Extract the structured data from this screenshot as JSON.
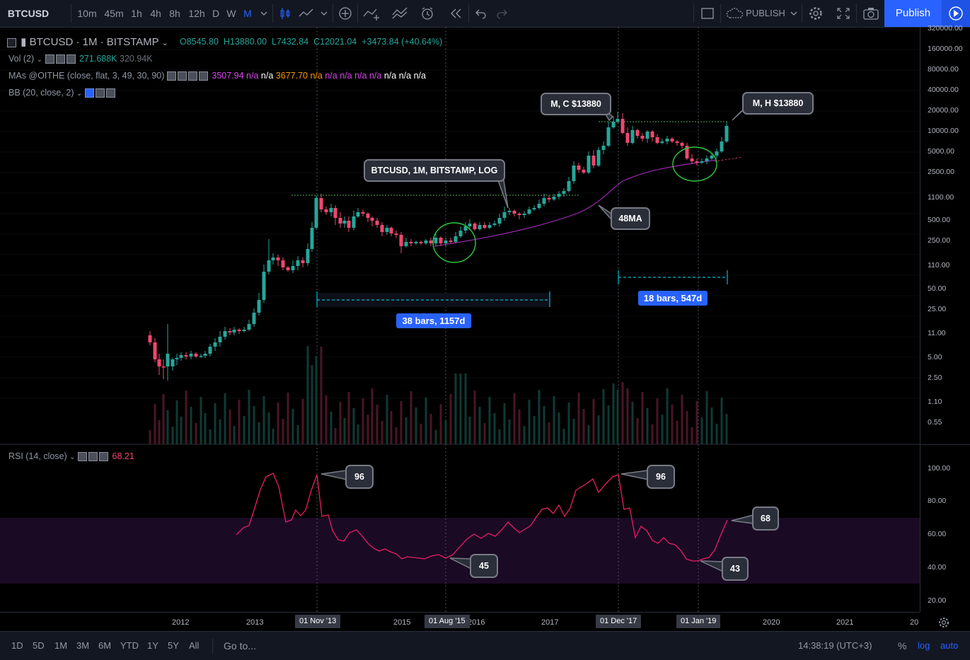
{
  "toolbar": {
    "symbol": "BTCUSD",
    "intervals": [
      "10m",
      "45m",
      "1h",
      "4h",
      "8h",
      "12h",
      "D",
      "W",
      "M"
    ],
    "active_interval": "M",
    "publish_dropdown": "PUBLISH",
    "publish_button": "Publish"
  },
  "legend": {
    "title": "BTCUSD · 1M · BITSTAMP",
    "open": "O8545.80",
    "high": "H13880.00",
    "low": "L7432.84",
    "close": "C12021.04",
    "change": "+3473.84 (+40.64%)",
    "vol_label": "Vol (2)",
    "vol_values": [
      "271.688K",
      "320.94K"
    ],
    "mas_label": "MAs @OITHE (close, flat, 3, 49, 30, 90)",
    "mas_values": [
      "3507.94",
      "n/a",
      "n/a",
      "3677.70",
      "n/a",
      "n/a",
      "n/a",
      "n/a",
      "n/a",
      "n/a",
      "n/a",
      "n/a"
    ],
    "bb_label": "BB (20, close, 2)",
    "rsi_label": "RSI (14, close)",
    "rsi_value": "68.21"
  },
  "price_axis": [
    "320000.00",
    "160000.00",
    "80000.00",
    "40000.00",
    "20000.00",
    "10000.00",
    "5000.00",
    "2500.00",
    "1100.00",
    "500.00",
    "250.00",
    "110.00",
    "50.00",
    "25.00",
    "11.00",
    "5.00",
    "2.50",
    "1.10",
    "0.55"
  ],
  "rsi_axis": [
    "100.00",
    "80.00",
    "60.00",
    "40.00",
    "20.00"
  ],
  "time_axis": [
    "2012",
    "2013",
    "2015",
    "2016",
    "2017",
    "2020",
    "2021",
    "20"
  ],
  "time_highlights": [
    "01 Nov '13",
    "01 Aug '15",
    "01 Dec '17",
    "01 Jan '19"
  ],
  "annotations": {
    "top_close": "M, C $13880",
    "top_high": "M, H $13880",
    "symbol_note": "BTCUSD, 1M, BITSTAMP, LOG",
    "ma_note": "48MA",
    "range1": "38 bars, 1157d",
    "range2": "18 bars, 547d",
    "rsi_96a": "96",
    "rsi_96b": "96",
    "rsi_45": "45",
    "rsi_43": "43",
    "rsi_68": "68"
  },
  "bottom_bar": {
    "ranges": [
      "1D",
      "5D",
      "1M",
      "3M",
      "6M",
      "YTD",
      "1Y",
      "5Y",
      "All"
    ],
    "goto": "Go to...",
    "clock": "14:38:19 (UTC+3)",
    "percent": "%",
    "log": "log",
    "auto": "auto"
  },
  "colors": {
    "up": "#26a69a",
    "down": "#ef476f",
    "rsi_line": "#e91e63",
    "ma_line": "#9c27b0",
    "accent": "#2962ff",
    "range_line": "#00bcd4",
    "rsi_band": "#1b0a24"
  }
}
